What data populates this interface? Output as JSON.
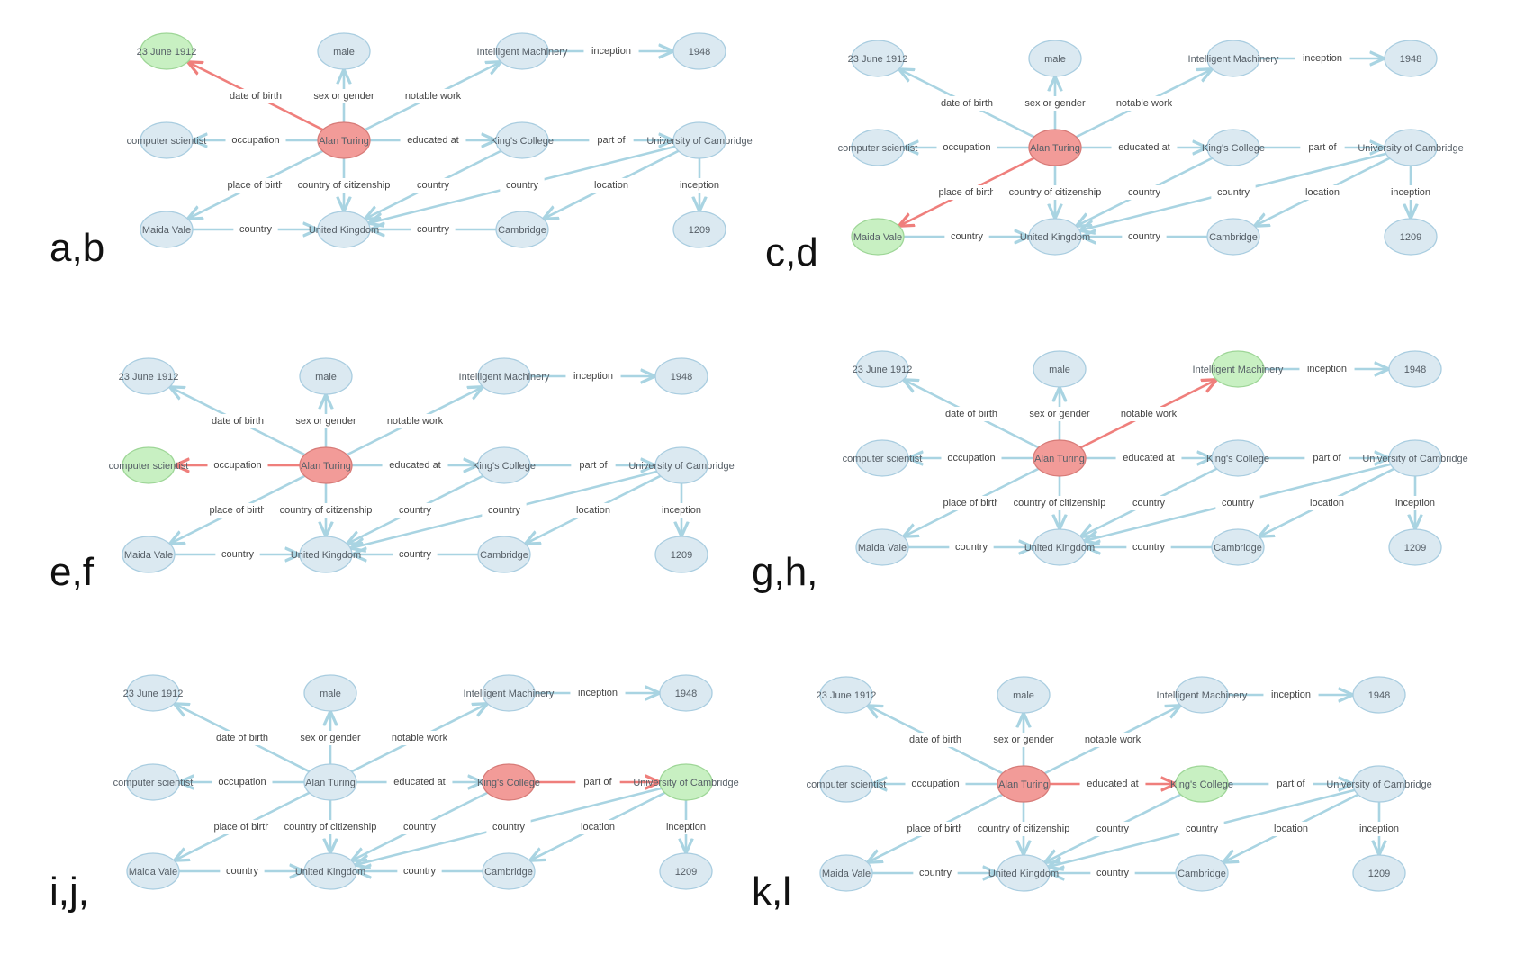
{
  "colors": {
    "node_fill": "#dbe9f1",
    "node_stroke": "#a9cde0",
    "edge": "#a9d4e2",
    "highlight_source": "#f29b98",
    "highlight_source_stroke": "#d77b78",
    "highlight_target": "#c8f0c2",
    "highlight_target_stroke": "#9ed697",
    "highlight_edge": "#ef7f7c"
  },
  "nodes": {
    "birth_date": "23 June 1912",
    "male": "male",
    "intelligent_machinery": "Intelligent Machinery",
    "year_1948": "1948",
    "computer_scientist": "computer scientist",
    "alan_turing": "Alan Turing",
    "kings_college": "King's College",
    "university_of_cambridge": "University of Cambridge",
    "maida_vale": "Maida Vale",
    "united_kingdom": "United Kingdom",
    "cambridge": "Cambridge",
    "year_1209": "1209"
  },
  "edges": [
    {
      "id": "date_of_birth",
      "label": "date of birth",
      "from": "alan_turing",
      "to": "birth_date"
    },
    {
      "id": "sex_or_gender",
      "label": "sex or gender",
      "from": "alan_turing",
      "to": "male"
    },
    {
      "id": "notable_work",
      "label": "notable work",
      "from": "alan_turing",
      "to": "intelligent_machinery"
    },
    {
      "id": "inception_machinery",
      "label": "inception",
      "from": "intelligent_machinery",
      "to": "year_1948"
    },
    {
      "id": "occupation",
      "label": "occupation",
      "from": "alan_turing",
      "to": "computer_scientist"
    },
    {
      "id": "educated_at",
      "label": "educated at",
      "from": "alan_turing",
      "to": "kings_college"
    },
    {
      "id": "part_of",
      "label": "part of",
      "from": "kings_college",
      "to": "university_of_cambridge"
    },
    {
      "id": "place_of_birth",
      "label": "place of birth",
      "from": "alan_turing",
      "to": "maida_vale"
    },
    {
      "id": "country_of_citizenship",
      "label": "country of citizenship",
      "from": "alan_turing",
      "to": "united_kingdom"
    },
    {
      "id": "country_kings",
      "label": "country",
      "from": "kings_college",
      "to": "united_kingdom"
    },
    {
      "id": "country_university",
      "label": "country",
      "from": "university_of_cambridge",
      "to": "united_kingdom"
    },
    {
      "id": "location_university",
      "label": "location",
      "from": "university_of_cambridge",
      "to": "cambridge"
    },
    {
      "id": "inception_university",
      "label": "inception",
      "from": "university_of_cambridge",
      "to": "year_1209"
    },
    {
      "id": "country_maida",
      "label": "country",
      "from": "maida_vale",
      "to": "united_kingdom"
    },
    {
      "id": "country_cambridge",
      "label": "country",
      "from": "cambridge",
      "to": "united_kingdom"
    }
  ],
  "panels": [
    {
      "label": "a,b",
      "source": "alan_turing",
      "target": "birth_date",
      "edges": [
        "date_of_birth"
      ]
    },
    {
      "label": "c,d",
      "source": "alan_turing",
      "target": "maida_vale",
      "edges": [
        "place_of_birth"
      ]
    },
    {
      "label": "e,f",
      "source": "alan_turing",
      "target": "computer_scientist",
      "edges": [
        "occupation"
      ]
    },
    {
      "label": "g,h,",
      "source": "alan_turing",
      "target": "intelligent_machinery",
      "edges": [
        "notable_work"
      ]
    },
    {
      "label": "i,j,",
      "source": "kings_college",
      "target": "university_of_cambridge",
      "edges": [
        "part_of"
      ]
    },
    {
      "label": "k,l",
      "source": "alan_turing",
      "target": "kings_college",
      "edges": [
        "educated_at"
      ]
    }
  ]
}
